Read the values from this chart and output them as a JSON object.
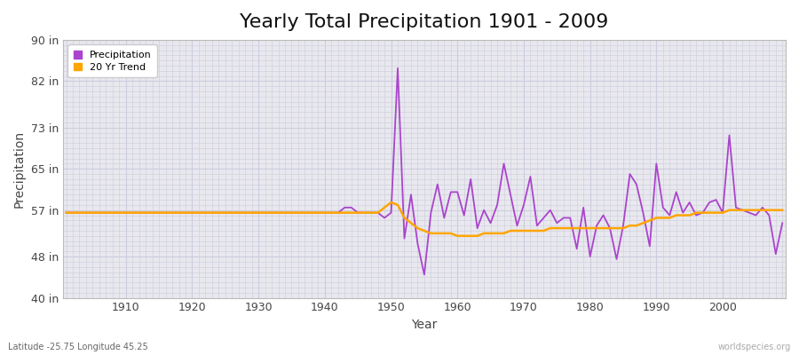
{
  "title": "Yearly Total Precipitation 1901 - 2009",
  "xlabel": "Year",
  "ylabel": "Precipitation",
  "lat_lon_label": "Latitude -25.75 Longitude 45.25",
  "watermark": "worldspecies.org",
  "years": [
    1901,
    1902,
    1903,
    1904,
    1905,
    1906,
    1907,
    1908,
    1909,
    1910,
    1911,
    1912,
    1913,
    1914,
    1915,
    1916,
    1917,
    1918,
    1919,
    1920,
    1921,
    1922,
    1923,
    1924,
    1925,
    1926,
    1927,
    1928,
    1929,
    1930,
    1931,
    1932,
    1933,
    1934,
    1935,
    1936,
    1937,
    1938,
    1939,
    1940,
    1941,
    1942,
    1943,
    1944,
    1945,
    1946,
    1947,
    1948,
    1949,
    1950,
    1951,
    1952,
    1953,
    1954,
    1955,
    1956,
    1957,
    1958,
    1959,
    1960,
    1961,
    1962,
    1963,
    1964,
    1965,
    1966,
    1967,
    1968,
    1969,
    1970,
    1971,
    1972,
    1973,
    1974,
    1975,
    1976,
    1977,
    1978,
    1979,
    1980,
    1981,
    1982,
    1983,
    1984,
    1985,
    1986,
    1987,
    1988,
    1989,
    1990,
    1991,
    1992,
    1993,
    1994,
    1995,
    1996,
    1997,
    1998,
    1999,
    2000,
    2001,
    2002,
    2003,
    2004,
    2005,
    2006,
    2007,
    2008,
    2009
  ],
  "precip": [
    56.5,
    56.5,
    56.5,
    56.5,
    56.5,
    56.5,
    56.5,
    56.5,
    56.5,
    56.5,
    56.5,
    56.5,
    56.5,
    56.5,
    56.5,
    56.5,
    56.5,
    56.5,
    56.5,
    56.5,
    56.5,
    56.5,
    56.5,
    56.5,
    56.5,
    56.5,
    56.5,
    56.5,
    56.5,
    56.5,
    56.5,
    56.5,
    56.5,
    56.5,
    56.5,
    56.5,
    56.5,
    56.5,
    56.5,
    56.5,
    56.5,
    56.5,
    57.5,
    57.5,
    56.5,
    56.5,
    56.5,
    56.5,
    55.5,
    56.5,
    84.5,
    51.5,
    60.0,
    50.5,
    44.5,
    56.5,
    62.0,
    55.5,
    60.5,
    60.5,
    56.0,
    63.0,
    53.5,
    57.0,
    54.5,
    58.0,
    66.0,
    60.0,
    54.0,
    58.0,
    63.5,
    54.0,
    55.5,
    57.0,
    54.5,
    55.5,
    55.5,
    49.5,
    57.5,
    48.0,
    54.0,
    56.0,
    53.5,
    47.5,
    54.0,
    64.0,
    62.0,
    56.5,
    50.0,
    66.0,
    57.5,
    56.0,
    60.5,
    56.5,
    58.5,
    56.0,
    56.5,
    58.5,
    59.0,
    56.5,
    71.5,
    57.5,
    57.0,
    56.5,
    56.0,
    57.5,
    56.0,
    48.5,
    54.5
  ],
  "trend": [
    56.5,
    56.5,
    56.5,
    56.5,
    56.5,
    56.5,
    56.5,
    56.5,
    56.5,
    56.5,
    56.5,
    56.5,
    56.5,
    56.5,
    56.5,
    56.5,
    56.5,
    56.5,
    56.5,
    56.5,
    56.5,
    56.5,
    56.5,
    56.5,
    56.5,
    56.5,
    56.5,
    56.5,
    56.5,
    56.5,
    56.5,
    56.5,
    56.5,
    56.5,
    56.5,
    56.5,
    56.5,
    56.5,
    56.5,
    56.5,
    56.5,
    56.5,
    56.5,
    56.5,
    56.5,
    56.5,
    56.5,
    56.5,
    57.5,
    58.5,
    58.0,
    55.5,
    54.5,
    53.5,
    53.0,
    52.5,
    52.5,
    52.5,
    52.5,
    52.0,
    52.0,
    52.0,
    52.0,
    52.5,
    52.5,
    52.5,
    52.5,
    53.0,
    53.0,
    53.0,
    53.0,
    53.0,
    53.0,
    53.5,
    53.5,
    53.5,
    53.5,
    53.5,
    53.5,
    53.5,
    53.5,
    53.5,
    53.5,
    53.5,
    53.5,
    54.0,
    54.0,
    54.5,
    55.0,
    55.5,
    55.5,
    55.5,
    56.0,
    56.0,
    56.0,
    56.5,
    56.5,
    56.5,
    56.5,
    56.5,
    57.0,
    57.0,
    57.0,
    57.0,
    57.0,
    57.0,
    57.0,
    57.0,
    57.0
  ],
  "precip_color": "#aa44cc",
  "trend_color": "#FFA500",
  "fig_bg_color": "#ffffff",
  "plot_bg_color": "#e8e8ee",
  "grid_color": "#ccccdd",
  "ylim": [
    40,
    90
  ],
  "yticks": [
    40,
    48,
    57,
    65,
    73,
    82,
    90
  ],
  "ytick_labels": [
    "40 in",
    "48 in",
    "57 in",
    "65 in",
    "73 in",
    "82 in",
    "90 in"
  ],
  "xlim_min": 1901,
  "xlim_max": 2009,
  "xticks": [
    1910,
    1920,
    1930,
    1940,
    1950,
    1960,
    1970,
    1980,
    1990,
    2000
  ],
  "title_fontsize": 16,
  "axis_label_fontsize": 10,
  "tick_fontsize": 9,
  "legend_fontsize": 8
}
